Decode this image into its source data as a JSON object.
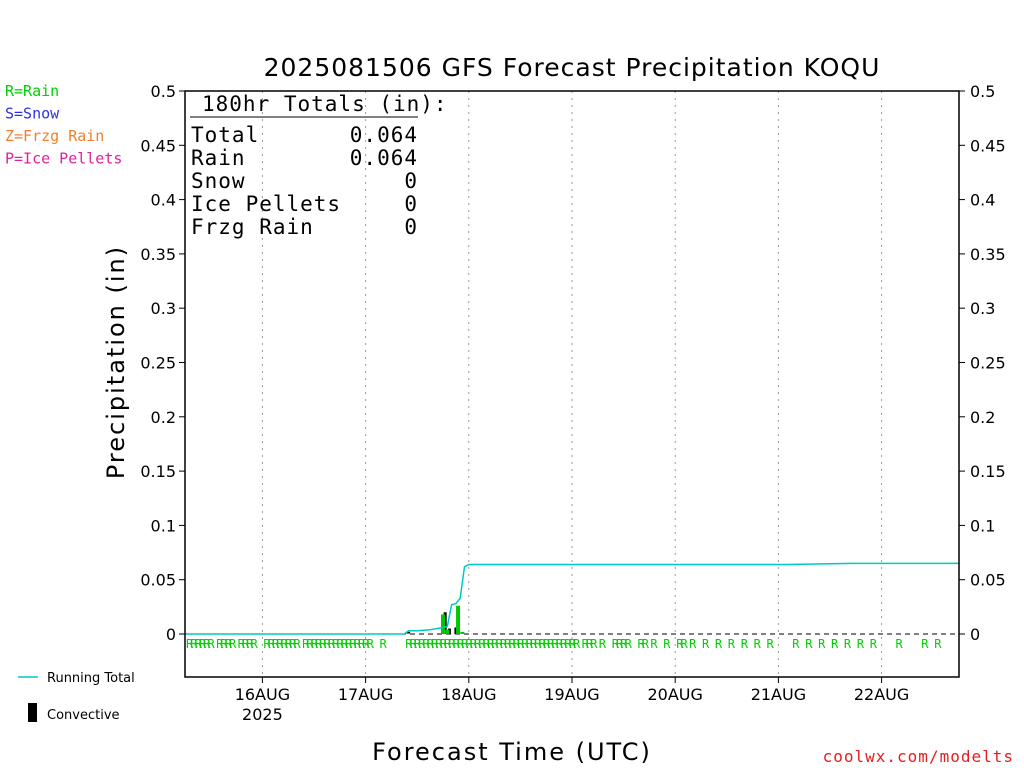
{
  "chart_data": {
    "type": "bar",
    "title": "2025081506 GFS Forecast Precipitation KOQU",
    "xlabel": "Forecast Time (UTC)",
    "ylabel": "Precipitation (in)",
    "ylim": [
      0,
      0.5
    ],
    "y_ticks": [
      "0",
      "0.05",
      "0.1",
      "0.15",
      "0.2",
      "0.25",
      "0.3",
      "0.35",
      "0.4",
      "0.45",
      "0.5"
    ],
    "x_range_hours": [
      0,
      180
    ],
    "x_ticks": [
      {
        "label": "16AUG",
        "sublabel": "2025",
        "hour": 18
      },
      {
        "label": "17AUG",
        "sublabel": "",
        "hour": 42
      },
      {
        "label": "18AUG",
        "sublabel": "",
        "hour": 66
      },
      {
        "label": "19AUG",
        "sublabel": "",
        "hour": 90
      },
      {
        "label": "20AUG",
        "sublabel": "",
        "hour": 114
      },
      {
        "label": "21AUG",
        "sublabel": "",
        "hour": 138
      },
      {
        "label": "22AUG",
        "sublabel": "",
        "hour": 162
      }
    ],
    "grid": true,
    "series": [
      {
        "name": "Running Total",
        "color": "#00c8c8",
        "type": "line",
        "points": [
          [
            0,
            0
          ],
          [
            51,
            0
          ],
          [
            52,
            0.003
          ],
          [
            54,
            0.003
          ],
          [
            57,
            0.004
          ],
          [
            60,
            0.006
          ],
          [
            61,
            0.007
          ],
          [
            62,
            0.027
          ],
          [
            63,
            0.028
          ],
          [
            64,
            0.033
          ],
          [
            65,
            0.062
          ],
          [
            66,
            0.064
          ],
          [
            68,
            0.064
          ],
          [
            120,
            0.064
          ],
          [
            140,
            0.064
          ],
          [
            155,
            0.065
          ],
          [
            180,
            0.065
          ]
        ]
      },
      {
        "name": "Convective",
        "color": "#000000",
        "type": "bar",
        "points": [
          [
            52,
            0.002
          ],
          [
            60.5,
            0.02
          ],
          [
            61.5,
            0.005
          ],
          [
            63,
            0.006
          ]
        ]
      },
      {
        "name": "Rain",
        "color": "#00c800",
        "type": "bar",
        "points": [
          [
            52,
            0.001
          ],
          [
            60,
            0.018
          ],
          [
            61,
            0.004
          ],
          [
            63.5,
            0.026
          ],
          [
            64.5,
            0.002
          ]
        ]
      }
    ],
    "precip_type_marks": {
      "label": "R",
      "color": "#00d000",
      "hours": [
        0,
        1,
        2,
        3,
        4,
        5,
        7,
        8,
        9,
        10,
        12,
        13,
        14,
        15,
        18,
        19,
        20,
        21,
        22,
        23,
        24,
        25,
        27,
        28,
        29,
        30,
        31,
        32,
        33,
        34,
        35,
        36,
        37,
        38,
        39,
        40,
        41,
        42,
        45,
        51,
        52,
        53,
        54,
        55,
        56,
        57,
        58,
        59,
        60,
        61,
        62,
        63,
        64,
        65,
        66,
        67,
        68,
        69,
        70,
        71,
        72,
        73,
        74,
        75,
        76,
        77,
        78,
        79,
        80,
        81,
        82,
        83,
        84,
        85,
        86,
        87,
        88,
        89,
        90,
        92,
        93,
        94,
        96,
        99,
        100,
        101,
        102,
        105,
        106,
        108,
        111,
        114,
        115,
        117,
        120,
        123,
        126,
        129,
        132,
        135,
        141,
        144,
        147,
        150,
        153,
        156,
        159,
        165,
        171,
        174
      ]
    },
    "totals": {
      "heading": "180hr Totals (in):",
      "rows": [
        {
          "label": "Total",
          "value": "0.064"
        },
        {
          "label": "Rain",
          "value": "0.064"
        },
        {
          "label": "Snow",
          "value": "0"
        },
        {
          "label": "Ice Pellets",
          "value": "0"
        },
        {
          "label": "Frzg Rain",
          "value": "0"
        }
      ]
    },
    "type_legend": [
      {
        "text": "R=Rain",
        "color": "#00d000"
      },
      {
        "text": "S=Snow",
        "color": "#3030e0"
      },
      {
        "text": "Z=Frzg Rain",
        "color": "#f08030"
      },
      {
        "text": "P=Ice Pellets",
        "color": "#e020a0"
      }
    ],
    "series_legend": [
      {
        "text": "Running Total",
        "color": "#00c8c8",
        "kind": "line"
      },
      {
        "text": "Convective",
        "color": "#000000",
        "kind": "bar"
      }
    ]
  },
  "credit": "coolwx.com/modelts",
  "credit_color": "#e02020"
}
